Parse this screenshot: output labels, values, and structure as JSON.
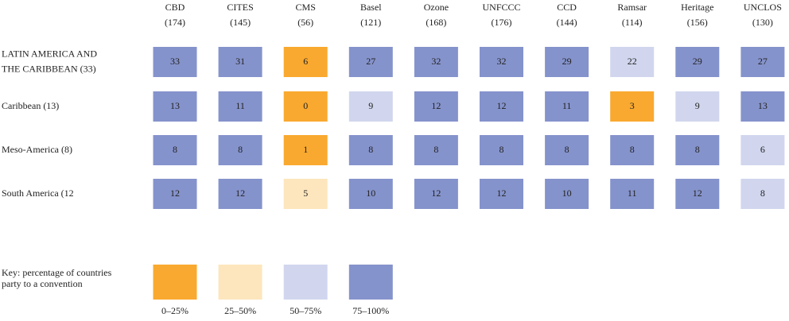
{
  "table": {
    "columns": [
      {
        "name": "CBD",
        "count": "(174)"
      },
      {
        "name": "CITES",
        "count": "(145)"
      },
      {
        "name": "CMS",
        "count": "(56)"
      },
      {
        "name": "Basel",
        "count": "(121)"
      },
      {
        "name": "Ozone",
        "count": "(168)"
      },
      {
        "name": "UNFCCC",
        "count": "(176)"
      },
      {
        "name": "CCD",
        "count": "(144)"
      },
      {
        "name": "Ramsar",
        "count": "(114)"
      },
      {
        "name": "Heritage",
        "count": "(156)"
      },
      {
        "name": "UNCLOS",
        "count": "(130)"
      }
    ],
    "rows": [
      {
        "label": [
          "LATIN AMERICA AND",
          "THE CARIBBEAN (33)"
        ],
        "cells": [
          {
            "value": 33,
            "color": "#8593cc"
          },
          {
            "value": 31,
            "color": "#8593cc"
          },
          {
            "value": 6,
            "color": "#f9a92f"
          },
          {
            "value": 27,
            "color": "#8593cc"
          },
          {
            "value": 32,
            "color": "#8593cc"
          },
          {
            "value": 32,
            "color": "#8593cc"
          },
          {
            "value": 29,
            "color": "#8593cc"
          },
          {
            "value": 22,
            "color": "#d1d6ee"
          },
          {
            "value": 29,
            "color": "#8593cc"
          },
          {
            "value": 27,
            "color": "#8593cc"
          }
        ]
      },
      {
        "label": [
          "Caribbean (13)"
        ],
        "cells": [
          {
            "value": 13,
            "color": "#8593cc"
          },
          {
            "value": 11,
            "color": "#8593cc"
          },
          {
            "value": 0,
            "color": "#f9a92f"
          },
          {
            "value": 9,
            "color": "#d1d6ee"
          },
          {
            "value": 12,
            "color": "#8593cc"
          },
          {
            "value": 12,
            "color": "#8593cc"
          },
          {
            "value": 11,
            "color": "#8593cc"
          },
          {
            "value": 3,
            "color": "#f9a92f"
          },
          {
            "value": 9,
            "color": "#d1d6ee"
          },
          {
            "value": 13,
            "color": "#8593cc"
          }
        ]
      },
      {
        "label": [
          "Meso-America (8)"
        ],
        "cells": [
          {
            "value": 8,
            "color": "#8593cc"
          },
          {
            "value": 8,
            "color": "#8593cc"
          },
          {
            "value": 1,
            "color": "#f9a92f"
          },
          {
            "value": 8,
            "color": "#8593cc"
          },
          {
            "value": 8,
            "color": "#8593cc"
          },
          {
            "value": 8,
            "color": "#8593cc"
          },
          {
            "value": 8,
            "color": "#8593cc"
          },
          {
            "value": 8,
            "color": "#8593cc"
          },
          {
            "value": 8,
            "color": "#8593cc"
          },
          {
            "value": 6,
            "color": "#d1d6ee"
          }
        ]
      },
      {
        "label": [
          "South America (12"
        ],
        "cells": [
          {
            "value": 12,
            "color": "#8593cc"
          },
          {
            "value": 12,
            "color": "#8593cc"
          },
          {
            "value": 5,
            "color": "#fde6bd"
          },
          {
            "value": 10,
            "color": "#8593cc"
          },
          {
            "value": 12,
            "color": "#8593cc"
          },
          {
            "value": 12,
            "color": "#8593cc"
          },
          {
            "value": 10,
            "color": "#8593cc"
          },
          {
            "value": 11,
            "color": "#8593cc"
          },
          {
            "value": 12,
            "color": "#8593cc"
          },
          {
            "value": 8,
            "color": "#d1d6ee"
          }
        ]
      }
    ]
  },
  "key": {
    "title": [
      "Key: percentage of countries",
      "party to a convention"
    ],
    "items": [
      {
        "label": "0–25%",
        "color": "#f9a92f"
      },
      {
        "label": "25–50%",
        "color": "#fde6bd"
      },
      {
        "label": "50–75%",
        "color": "#d1d6ee"
      },
      {
        "label": "75–100%",
        "color": "#8593cc"
      }
    ]
  }
}
